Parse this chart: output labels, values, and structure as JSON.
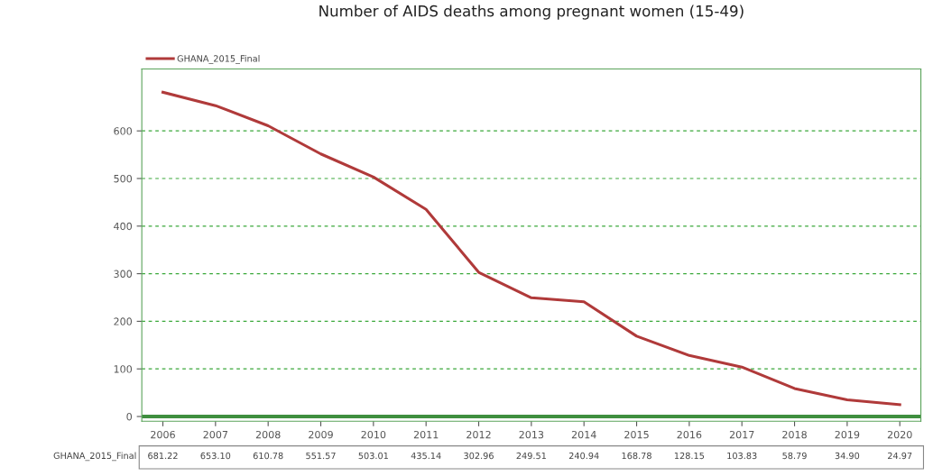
{
  "chart_data": {
    "type": "line",
    "title": "Number of AIDS deaths among pregnant women (15-49)",
    "categories": [
      "2006",
      "2007",
      "2008",
      "2009",
      "2010",
      "2011",
      "2012",
      "2013",
      "2014",
      "2015",
      "2016",
      "2017",
      "2018",
      "2019",
      "2020"
    ],
    "series": [
      {
        "name": "GHANA_2015_Final",
        "color": "#b03a3a",
        "values": [
          681.22,
          653.1,
          610.78,
          551.57,
          503.01,
          435.14,
          302.96,
          249.51,
          240.94,
          168.78,
          128.15,
          103.83,
          58.79,
          34.9,
          24.97
        ],
        "value_labels": [
          "681.22",
          "653.10",
          "610.78",
          "551.57",
          "503.01",
          "435.14",
          "302.96",
          "249.51",
          "240.94",
          "168.78",
          "128.15",
          "103.83",
          "58.79",
          "34.90",
          "24.97"
        ]
      }
    ],
    "ref_lines": [
      {
        "axis": "y",
        "value": 0,
        "color": "#3f8f3f"
      }
    ],
    "ylim": [
      -10,
      730
    ],
    "yticks": [
      0,
      100,
      200,
      300,
      400,
      500,
      600
    ],
    "grid": "y",
    "legend": "top left",
    "marker": "none",
    "line_style": "solid"
  }
}
